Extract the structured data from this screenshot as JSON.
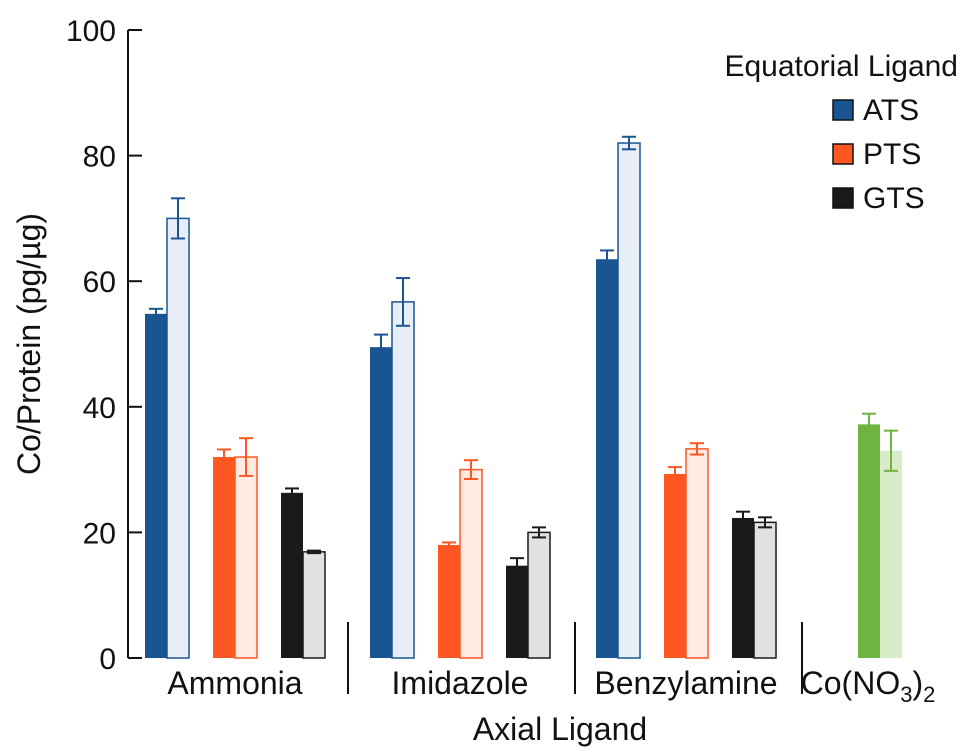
{
  "chart_data": {
    "type": "bar",
    "xlabel": "Axial Ligand",
    "ylabel": "Co/Protein (pg/µg)",
    "ylim": [
      0,
      100
    ],
    "yticks": [
      "0",
      "20",
      "40",
      "60",
      "80",
      "100"
    ],
    "legend": {
      "title": "Equatorial Ligand",
      "placement": "top-right",
      "entries": [
        {
          "name": "ATS",
          "color": "#1a5593"
        },
        {
          "name": "PTS",
          "color": "#ff5722"
        },
        {
          "name": "GTS",
          "color": "#1a1a1a"
        }
      ]
    },
    "groups": [
      {
        "label": "Ammonia",
        "bars": [
          {
            "series": "ATS",
            "variant": "solid",
            "value": 54.8,
            "error": 0.8
          },
          {
            "series": "ATS",
            "variant": "light",
            "value": 70.0,
            "error": 3.2
          },
          {
            "series": "PTS",
            "variant": "solid",
            "value": 32.0,
            "error": 1.2
          },
          {
            "series": "PTS",
            "variant": "light",
            "value": 32.0,
            "error": 3.0
          },
          {
            "series": "GTS",
            "variant": "solid",
            "value": 26.3,
            "error": 0.7
          },
          {
            "series": "GTS",
            "variant": "light",
            "value": 16.9,
            "error": 0.2
          }
        ]
      },
      {
        "label": "Imidazole",
        "bars": [
          {
            "series": "ATS",
            "variant": "solid",
            "value": 49.5,
            "error": 2.0
          },
          {
            "series": "ATS",
            "variant": "light",
            "value": 56.7,
            "error": 3.8
          },
          {
            "series": "PTS",
            "variant": "solid",
            "value": 18.0,
            "error": 0.4
          },
          {
            "series": "PTS",
            "variant": "light",
            "value": 30.0,
            "error": 1.5
          },
          {
            "series": "GTS",
            "variant": "solid",
            "value": 14.7,
            "error": 1.2
          },
          {
            "series": "GTS",
            "variant": "light",
            "value": 20.0,
            "error": 0.8
          }
        ]
      },
      {
        "label": "Benzylamine",
        "bars": [
          {
            "series": "ATS",
            "variant": "solid",
            "value": 63.5,
            "error": 1.4
          },
          {
            "series": "ATS",
            "variant": "light",
            "value": 82.0,
            "error": 1.0
          },
          {
            "series": "PTS",
            "variant": "solid",
            "value": 29.3,
            "error": 1.1
          },
          {
            "series": "PTS",
            "variant": "light",
            "value": 33.3,
            "error": 0.9
          },
          {
            "series": "GTS",
            "variant": "solid",
            "value": 22.3,
            "error": 1.0
          },
          {
            "series": "GTS",
            "variant": "light",
            "value": 21.6,
            "error": 0.8
          }
        ]
      },
      {
        "label": "Co(NO3)2",
        "label_base": "Co(NO",
        "label_sub1": "3",
        "label_mid": ")",
        "label_sub2": "2",
        "bars": [
          {
            "series": "Co(NO3)2",
            "variant": "solid",
            "value": 37.2,
            "error": 1.7
          },
          {
            "series": "Co(NO3)2",
            "variant": "light",
            "value": 33.0,
            "error": 3.2
          }
        ]
      }
    ],
    "colors": {
      "ATS": {
        "solid": "#1a5593",
        "light": "#e8eef8",
        "edge": "#1a5593"
      },
      "PTS": {
        "solid": "#ff5722",
        "light": "#ffeae3",
        "edge": "#ff5722"
      },
      "GTS": {
        "solid": "#1a1a1a",
        "light": "#e2e2e2",
        "edge": "#1a1a1a"
      },
      "Co(NO3)2": {
        "solid": "#6fb440",
        "light": "#d9ebc8",
        "edge": "#6fb440"
      }
    },
    "grid": false
  }
}
